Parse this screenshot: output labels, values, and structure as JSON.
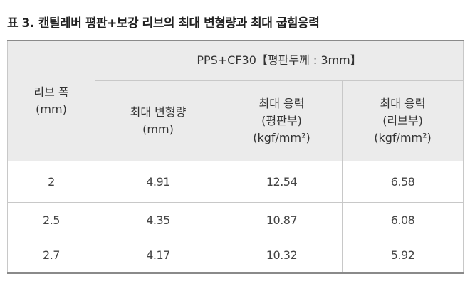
{
  "title": {
    "label": "표 3.",
    "text": "캔틸레버 평판+보강 리브의 최대 변형량과 최대 굽힘응력"
  },
  "table": {
    "header": {
      "row_label": [
        "리브 폭",
        "(mm)"
      ],
      "group": "PPS+CF30【평판두께 : 3mm】",
      "columns": [
        [
          "최대 변형량",
          "(mm)"
        ],
        [
          "최대 응력",
          "(평판부)",
          "(kgf/mm²)"
        ],
        [
          "최대 응력",
          "(리브부)",
          "(kgf/mm²)"
        ]
      ]
    },
    "rows": [
      [
        "2",
        "4.91",
        "12.54",
        "6.58"
      ],
      [
        "2.5",
        "4.35",
        "10.87",
        "6.08"
      ],
      [
        "2.7",
        "4.17",
        "10.32",
        "5.92"
      ]
    ]
  }
}
